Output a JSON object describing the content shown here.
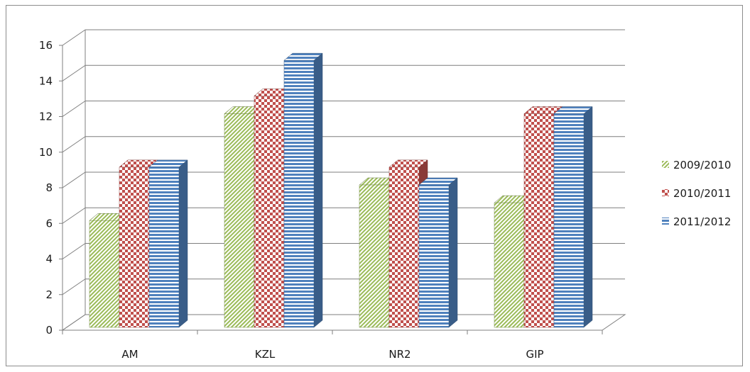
{
  "chart_data": {
    "type": "bar",
    "style": "3d-clustered-column",
    "categories": [
      "AM",
      "KZL",
      "NR2",
      "GIP"
    ],
    "series": [
      {
        "name": "2009/2010",
        "values": [
          6,
          12,
          8,
          7
        ],
        "color": "#9bbb59",
        "pattern": "diagonal-stripes"
      },
      {
        "name": "2010/2011",
        "values": [
          9,
          13,
          9,
          12
        ],
        "color": "#c0504d",
        "pattern": "checkerboard"
      },
      {
        "name": "2011/2012",
        "values": [
          9,
          15,
          8,
          12
        ],
        "color": "#4f81bd",
        "pattern": "horizontal-stripes"
      }
    ],
    "ylim": [
      0,
      16
    ],
    "yticks": [
      "0",
      "2",
      "4",
      "6",
      "8",
      "10",
      "12",
      "14",
      "16"
    ],
    "grid": true,
    "legend_position": "right"
  }
}
